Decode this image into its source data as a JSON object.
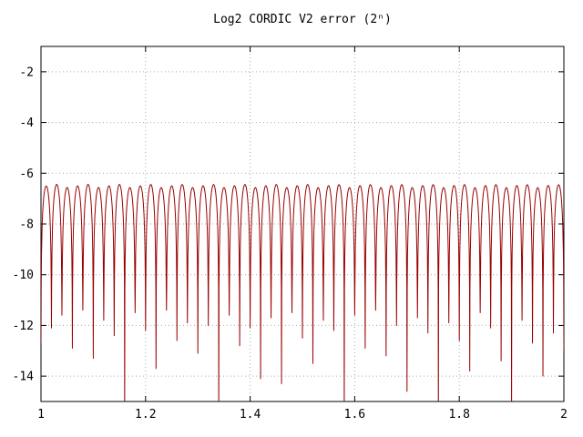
{
  "window": {
    "background": "#ffffff"
  },
  "chart_data": {
    "type": "line",
    "title": "Log2 CORDIC V2 error (2ⁿ)",
    "xlabel": "",
    "ylabel": "",
    "xlim": [
      1,
      2
    ],
    "ylim": [
      -15,
      -1
    ],
    "x_ticks": [
      1,
      1.2,
      1.4,
      1.6,
      1.8,
      2
    ],
    "x_tick_labels": [
      "1",
      "1.2",
      "1.4",
      "1.6",
      "1.8",
      "2"
    ],
    "y_ticks": [
      -2,
      -4,
      -6,
      -8,
      -10,
      -12,
      -14
    ],
    "y_tick_labels": [
      "-2",
      "-4",
      "-6",
      "-8",
      "-10",
      "-12",
      "-14"
    ],
    "grid": true,
    "grid_color": "#aaaaaa",
    "border_color": "#000000",
    "line_color": "#990000",
    "background": "#ffffff",
    "legend": "none",
    "series_model": {
      "description": "log2 of absolute CORDIC V2 error on x in [1,2]; scalloped arches between zero-crossing cusps; arch peaks near peak_level, cusps plunge to cusp_depths (values below -15 are clipped at the bottom axis)",
      "num_arches": 50,
      "peak_level": -6.5,
      "arch_shape_scale": 1.0,
      "cusp_depths": [
        -12.7,
        -12.1,
        -11.6,
        -12.9,
        -11.4,
        -13.3,
        -11.8,
        -12.4,
        -15.5,
        -11.5,
        -12.2,
        -13.7,
        -11.4,
        -12.6,
        -11.9,
        -13.1,
        -12.0,
        -15.5,
        -11.6,
        -12.8,
        -12.1,
        -14.1,
        -11.7,
        -14.3,
        -11.5,
        -12.5,
        -13.5,
        -11.8,
        -12.2,
        -15.5,
        -11.6,
        -12.9,
        -11.4,
        -13.2,
        -12.0,
        -14.6,
        -11.7,
        -12.3,
        -15.5,
        -11.9,
        -12.6,
        -13.8,
        -11.5,
        -12.1,
        -13.4,
        -15.5,
        -11.8,
        -12.7,
        -14.0,
        -12.3,
        -13.0
      ]
    }
  }
}
